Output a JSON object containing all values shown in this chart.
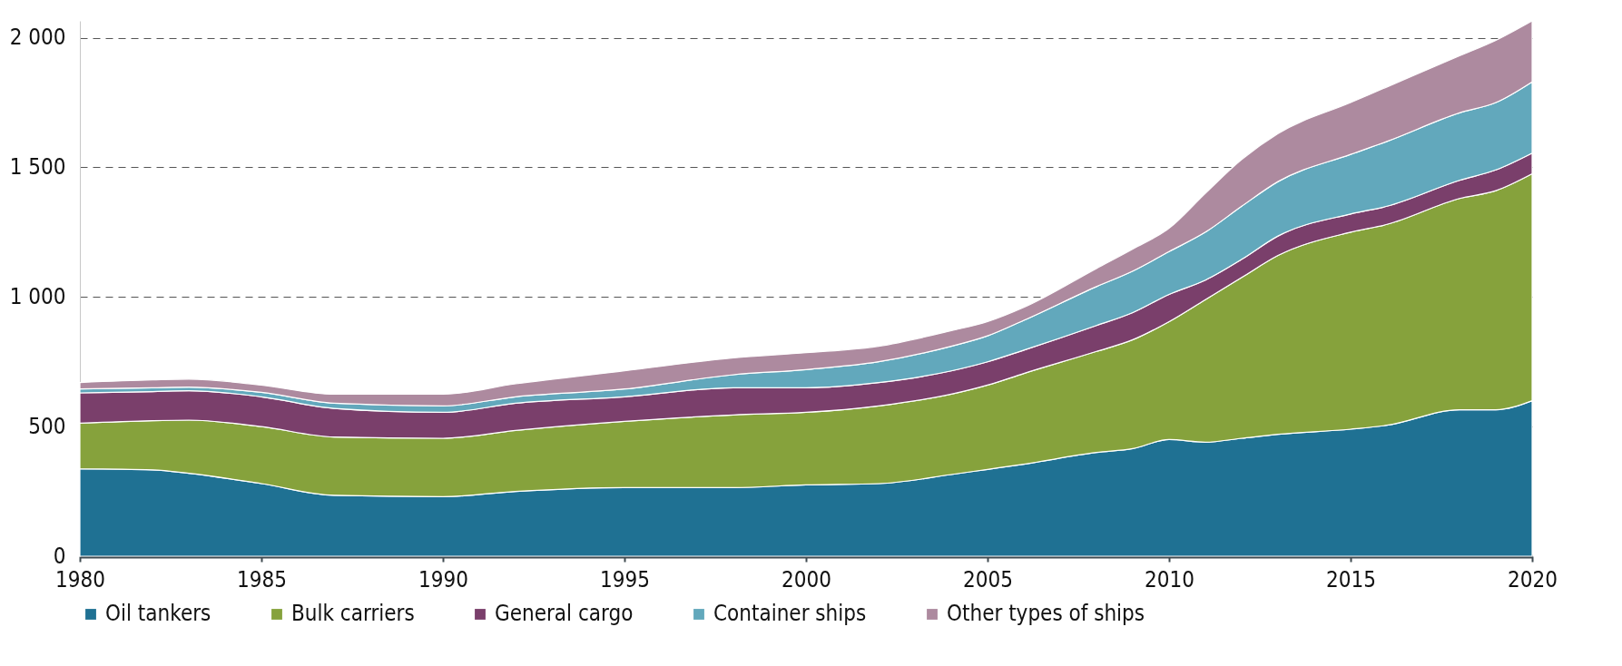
{
  "chart_data": {
    "type": "area",
    "stacked": true,
    "x": [
      1980,
      1982,
      1983,
      1985,
      1987,
      1990,
      1992,
      1995,
      1998,
      2000,
      2002,
      2004,
      2005,
      2006,
      2008,
      2009,
      2010,
      2011,
      2012,
      2013,
      2015,
      2016,
      2018,
      2019,
      2020
    ],
    "series": [
      {
        "name": "Oil tankers",
        "color": "#1f7193",
        "values": [
          337,
          333,
          320,
          280,
          235,
          230,
          250,
          265,
          265,
          275,
          280,
          315,
          335,
          355,
          400,
          415,
          450,
          440,
          455,
          470,
          490,
          505,
          565,
          565,
          600
        ]
      },
      {
        "name": "Bulk carriers",
        "color": "#86a23c",
        "values": [
          176,
          190,
          205,
          220,
          225,
          225,
          235,
          255,
          280,
          280,
          300,
          310,
          325,
          350,
          390,
          420,
          455,
          550,
          620,
          690,
          760,
          775,
          815,
          845,
          875
        ]
      },
      {
        "name": "General cargo",
        "color": "#7a3f6b",
        "values": [
          117,
          112,
          113,
          115,
          110,
          100,
          105,
          95,
          105,
          95,
          90,
          90,
          90,
          90,
          100,
          105,
          105,
          75,
          70,
          75,
          70,
          70,
          70,
          80,
          80
        ]
      },
      {
        "name": "Container ships",
        "color": "#62a8bc",
        "values": [
          15,
          15,
          14,
          17,
          20,
          25,
          25,
          30,
          50,
          70,
          80,
          95,
          100,
          115,
          150,
          160,
          165,
          185,
          205,
          210,
          230,
          250,
          260,
          260,
          275
        ]
      },
      {
        "name": "Other types of ships",
        "color": "#ad8a9f",
        "values": [
          25,
          30,
          31,
          28,
          35,
          45,
          50,
          70,
          65,
          65,
          60,
          60,
          55,
          50,
          70,
          85,
          90,
          150,
          180,
          185,
          200,
          210,
          220,
          240,
          235
        ]
      }
    ],
    "xlim": [
      1980,
      2020
    ],
    "xticks": [
      1980,
      1985,
      1990,
      1995,
      2000,
      2005,
      2010,
      2015,
      2020
    ],
    "ylim": [
      0,
      2065
    ],
    "yticks": [
      0,
      500,
      {
        "value": 1000,
        "label": "1 000"
      },
      {
        "value": 1500,
        "label": "1 500"
      },
      {
        "value": 2000,
        "label": "2 000"
      }
    ],
    "grid": "y",
    "legend": "bottom"
  }
}
